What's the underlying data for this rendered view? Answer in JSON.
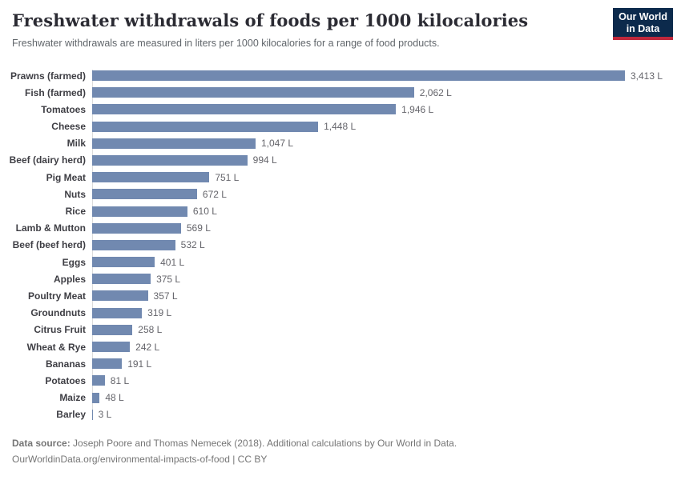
{
  "header": {
    "title": "Freshwater withdrawals of foods per 1000 kilocalories",
    "subtitle": "Freshwater withdrawals are measured in liters per 1000 kilocalories for a range of food products."
  },
  "logo": {
    "line1": "Our World",
    "line2": "in Data",
    "bg_color": "#0c2a4c",
    "stripe_color": "#c0283c"
  },
  "chart_data": {
    "type": "bar",
    "orientation": "horizontal",
    "unit": "liters per 1000 kilocalories",
    "categories": [
      "Prawns (farmed)",
      "Fish (farmed)",
      "Tomatoes",
      "Cheese",
      "Milk",
      "Beef (dairy herd)",
      "Pig Meat",
      "Nuts",
      "Rice",
      "Lamb & Mutton",
      "Beef (beef herd)",
      "Eggs",
      "Apples",
      "Poultry Meat",
      "Groundnuts",
      "Citrus Fruit",
      "Wheat & Rye",
      "Bananas",
      "Potatoes",
      "Maize",
      "Barley"
    ],
    "values": [
      3413,
      2062,
      1946,
      1448,
      1047,
      994,
      751,
      672,
      610,
      569,
      532,
      401,
      375,
      357,
      319,
      258,
      242,
      191,
      81,
      48,
      3
    ],
    "value_labels": [
      "3,413 L",
      "2,062 L",
      "1,946 L",
      "1,448 L",
      "1,047 L",
      "994 L",
      "751 L",
      "672 L",
      "610 L",
      "569 L",
      "532 L",
      "401 L",
      "375 L",
      "357 L",
      "319 L",
      "258 L",
      "242 L",
      "191 L",
      "81 L",
      "48 L",
      "3 L"
    ],
    "xlim": [
      0,
      3413
    ],
    "bar_color": "#7189b0",
    "grid": false,
    "legend": false
  },
  "footer": {
    "data_source_label": "Data source:",
    "data_source_text": " Joseph Poore and Thomas Nemecek (2018). Additional calculations by Our World in Data.",
    "link_line": "OurWorldinData.org/environmental-impacts-of-food | CC BY"
  }
}
